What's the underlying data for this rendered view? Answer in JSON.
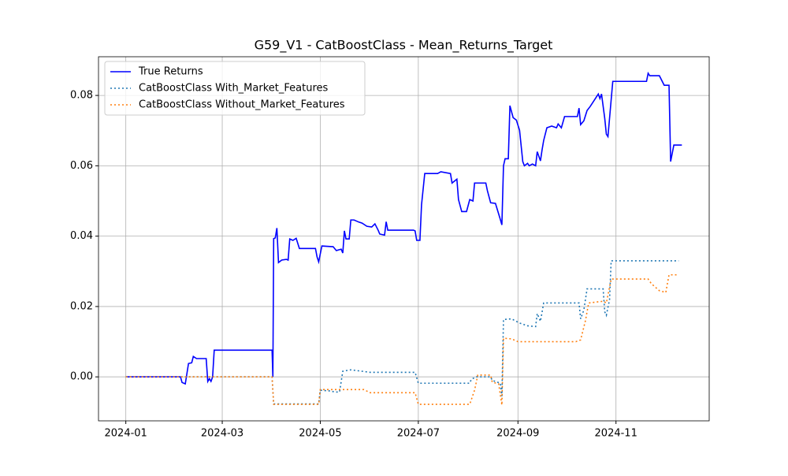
{
  "chart_data": {
    "type": "line",
    "title": "G59_V1 - CatBoostClass - Mean_Returns_Target",
    "xlim": [
      -17,
      363
    ],
    "ylim": [
      -0.0125,
      0.091
    ],
    "xticks": [
      {
        "value": 0,
        "label": "2024-01"
      },
      {
        "value": 60,
        "label": "2024-03"
      },
      {
        "value": 121,
        "label": "2024-05"
      },
      {
        "value": 182,
        "label": "2024-07"
      },
      {
        "value": 244,
        "label": "2024-09"
      },
      {
        "value": 305,
        "label": "2024-11"
      }
    ],
    "yticks": [
      {
        "value": 0,
        "label": "0.00"
      },
      {
        "value": 0.02,
        "label": "0.02"
      },
      {
        "value": 0.04,
        "label": "0.04"
      },
      {
        "value": 0.06,
        "label": "0.06"
      },
      {
        "value": 0.08,
        "label": "0.08"
      }
    ],
    "grid": true,
    "legend": "upper left",
    "series": [
      {
        "name": "True Returns",
        "color": "#0000ff",
        "linestyle": "solid",
        "x": [
          0,
          34,
          35,
          37,
          39,
          41,
          42,
          44,
          50,
          51,
          52,
          53,
          54,
          55,
          91,
          91.5,
          92,
          93,
          94,
          95,
          97,
          100,
          101,
          102,
          104,
          106,
          108,
          118,
          119,
          120,
          122,
          129,
          131,
          134,
          135,
          136,
          137,
          139,
          140,
          142,
          145,
          147,
          150,
          153,
          155,
          157,
          158,
          161,
          162,
          163,
          179,
          180,
          181,
          183,
          184,
          186,
          194,
          196,
          202,
          203,
          206,
          207,
          209,
          212,
          214,
          216,
          217,
          224,
          225,
          227,
          230,
          233,
          234,
          235,
          236,
          238,
          239,
          241,
          243,
          245,
          247,
          248,
          250,
          251,
          253,
          255,
          256,
          258,
          259,
          260,
          262,
          265,
          268,
          269,
          271,
          273,
          281,
          282,
          283,
          285,
          287,
          289,
          294,
          295,
          296,
          298,
          299,
          300,
          303,
          324,
          325,
          326,
          332,
          335,
          338,
          339,
          341,
          346
        ],
        "values": [
          0,
          0,
          -0.0016,
          -0.002,
          0.0038,
          0.004,
          0.0058,
          0.0052,
          0.0052,
          -0.0013,
          -0.0005,
          -0.0013,
          0,
          0.0076,
          0.0076,
          0,
          0.0393,
          0.0395,
          0.0423,
          0.0325,
          0.0332,
          0.0334,
          0.0332,
          0.0392,
          0.0388,
          0.0394,
          0.0365,
          0.0365,
          0.0341,
          0.0327,
          0.0372,
          0.037,
          0.0359,
          0.0363,
          0.0352,
          0.0415,
          0.0392,
          0.0392,
          0.0446,
          0.0446,
          0.044,
          0.0437,
          0.0428,
          0.0426,
          0.0435,
          0.0417,
          0.0406,
          0.0403,
          0.0441,
          0.0417,
          0.0417,
          0.0415,
          0.0388,
          0.0388,
          0.0489,
          0.0578,
          0.0578,
          0.0583,
          0.0578,
          0.0551,
          0.0562,
          0.0504,
          0.047,
          0.047,
          0.0504,
          0.05,
          0.0551,
          0.0551,
          0.0529,
          0.0495,
          0.0493,
          0.0448,
          0.0432,
          0.06,
          0.062,
          0.062,
          0.0771,
          0.0737,
          0.073,
          0.0701,
          0.0612,
          0.06,
          0.0607,
          0.06,
          0.0605,
          0.06,
          0.064,
          0.0614,
          0.0645,
          0.0672,
          0.0708,
          0.0713,
          0.0708,
          0.0719,
          0.0708,
          0.074,
          0.074,
          0.0764,
          0.0717,
          0.0728,
          0.0757,
          0.0769,
          0.0804,
          0.0791,
          0.0804,
          0.0735,
          0.069,
          0.0683,
          0.084,
          0.084,
          0.0863,
          0.0856,
          0.0856,
          0.0829,
          0.0829,
          0.0612,
          0.0659,
          0.0659
        ]
      },
      {
        "name": "CatBoostClass With_Market_Features",
        "color": "#1f77b4",
        "linestyle": "dotted",
        "x": [
          0,
          91,
          92,
          120,
          121,
          127,
          130,
          133,
          135,
          140,
          152,
          180,
          182,
          214,
          215,
          218,
          227,
          228,
          233,
          234,
          235,
          240,
          245,
          250,
          255,
          256,
          258,
          260,
          282,
          283,
          285,
          287,
          297,
          298,
          299,
          301,
          302,
          344
        ],
        "values": [
          0,
          0,
          -0.0077,
          -0.0077,
          -0.0038,
          -0.004,
          -0.0043,
          -0.0043,
          0.0016,
          0.002,
          0.0013,
          0.0013,
          -0.0018,
          -0.0018,
          -0.0007,
          0,
          0,
          -0.001,
          -0.0018,
          -0.0055,
          0.0163,
          0.0165,
          0.0153,
          0.0145,
          0.0143,
          0.018,
          0.0158,
          0.021,
          0.021,
          0.0165,
          0.019,
          0.025,
          0.025,
          0.0185,
          0.0175,
          0.022,
          0.033,
          0.033
        ]
      },
      {
        "name": "CatBoostClass Without_Market_Features",
        "color": "#ff7f0e",
        "linestyle": "dotted",
        "x": [
          0,
          91,
          92,
          120,
          121,
          148,
          152,
          180,
          182,
          214,
          217,
          219,
          227,
          228,
          232,
          234,
          235,
          240,
          244,
          280,
          283,
          286,
          288,
          297,
          299,
          302,
          325,
          327,
          332,
          336,
          338,
          344
        ],
        "values": [
          0,
          0,
          -0.0078,
          -0.0078,
          -0.0036,
          -0.0036,
          -0.0045,
          -0.0045,
          -0.0078,
          -0.0078,
          -0.0038,
          0.0005,
          0.0005,
          -0.0015,
          -0.002,
          -0.008,
          0.011,
          0.0108,
          0.01,
          0.01,
          0.0105,
          0.016,
          0.021,
          0.0215,
          0.021,
          0.0278,
          0.0278,
          0.0265,
          0.0245,
          0.024,
          0.029,
          0.029
        ]
      }
    ]
  }
}
